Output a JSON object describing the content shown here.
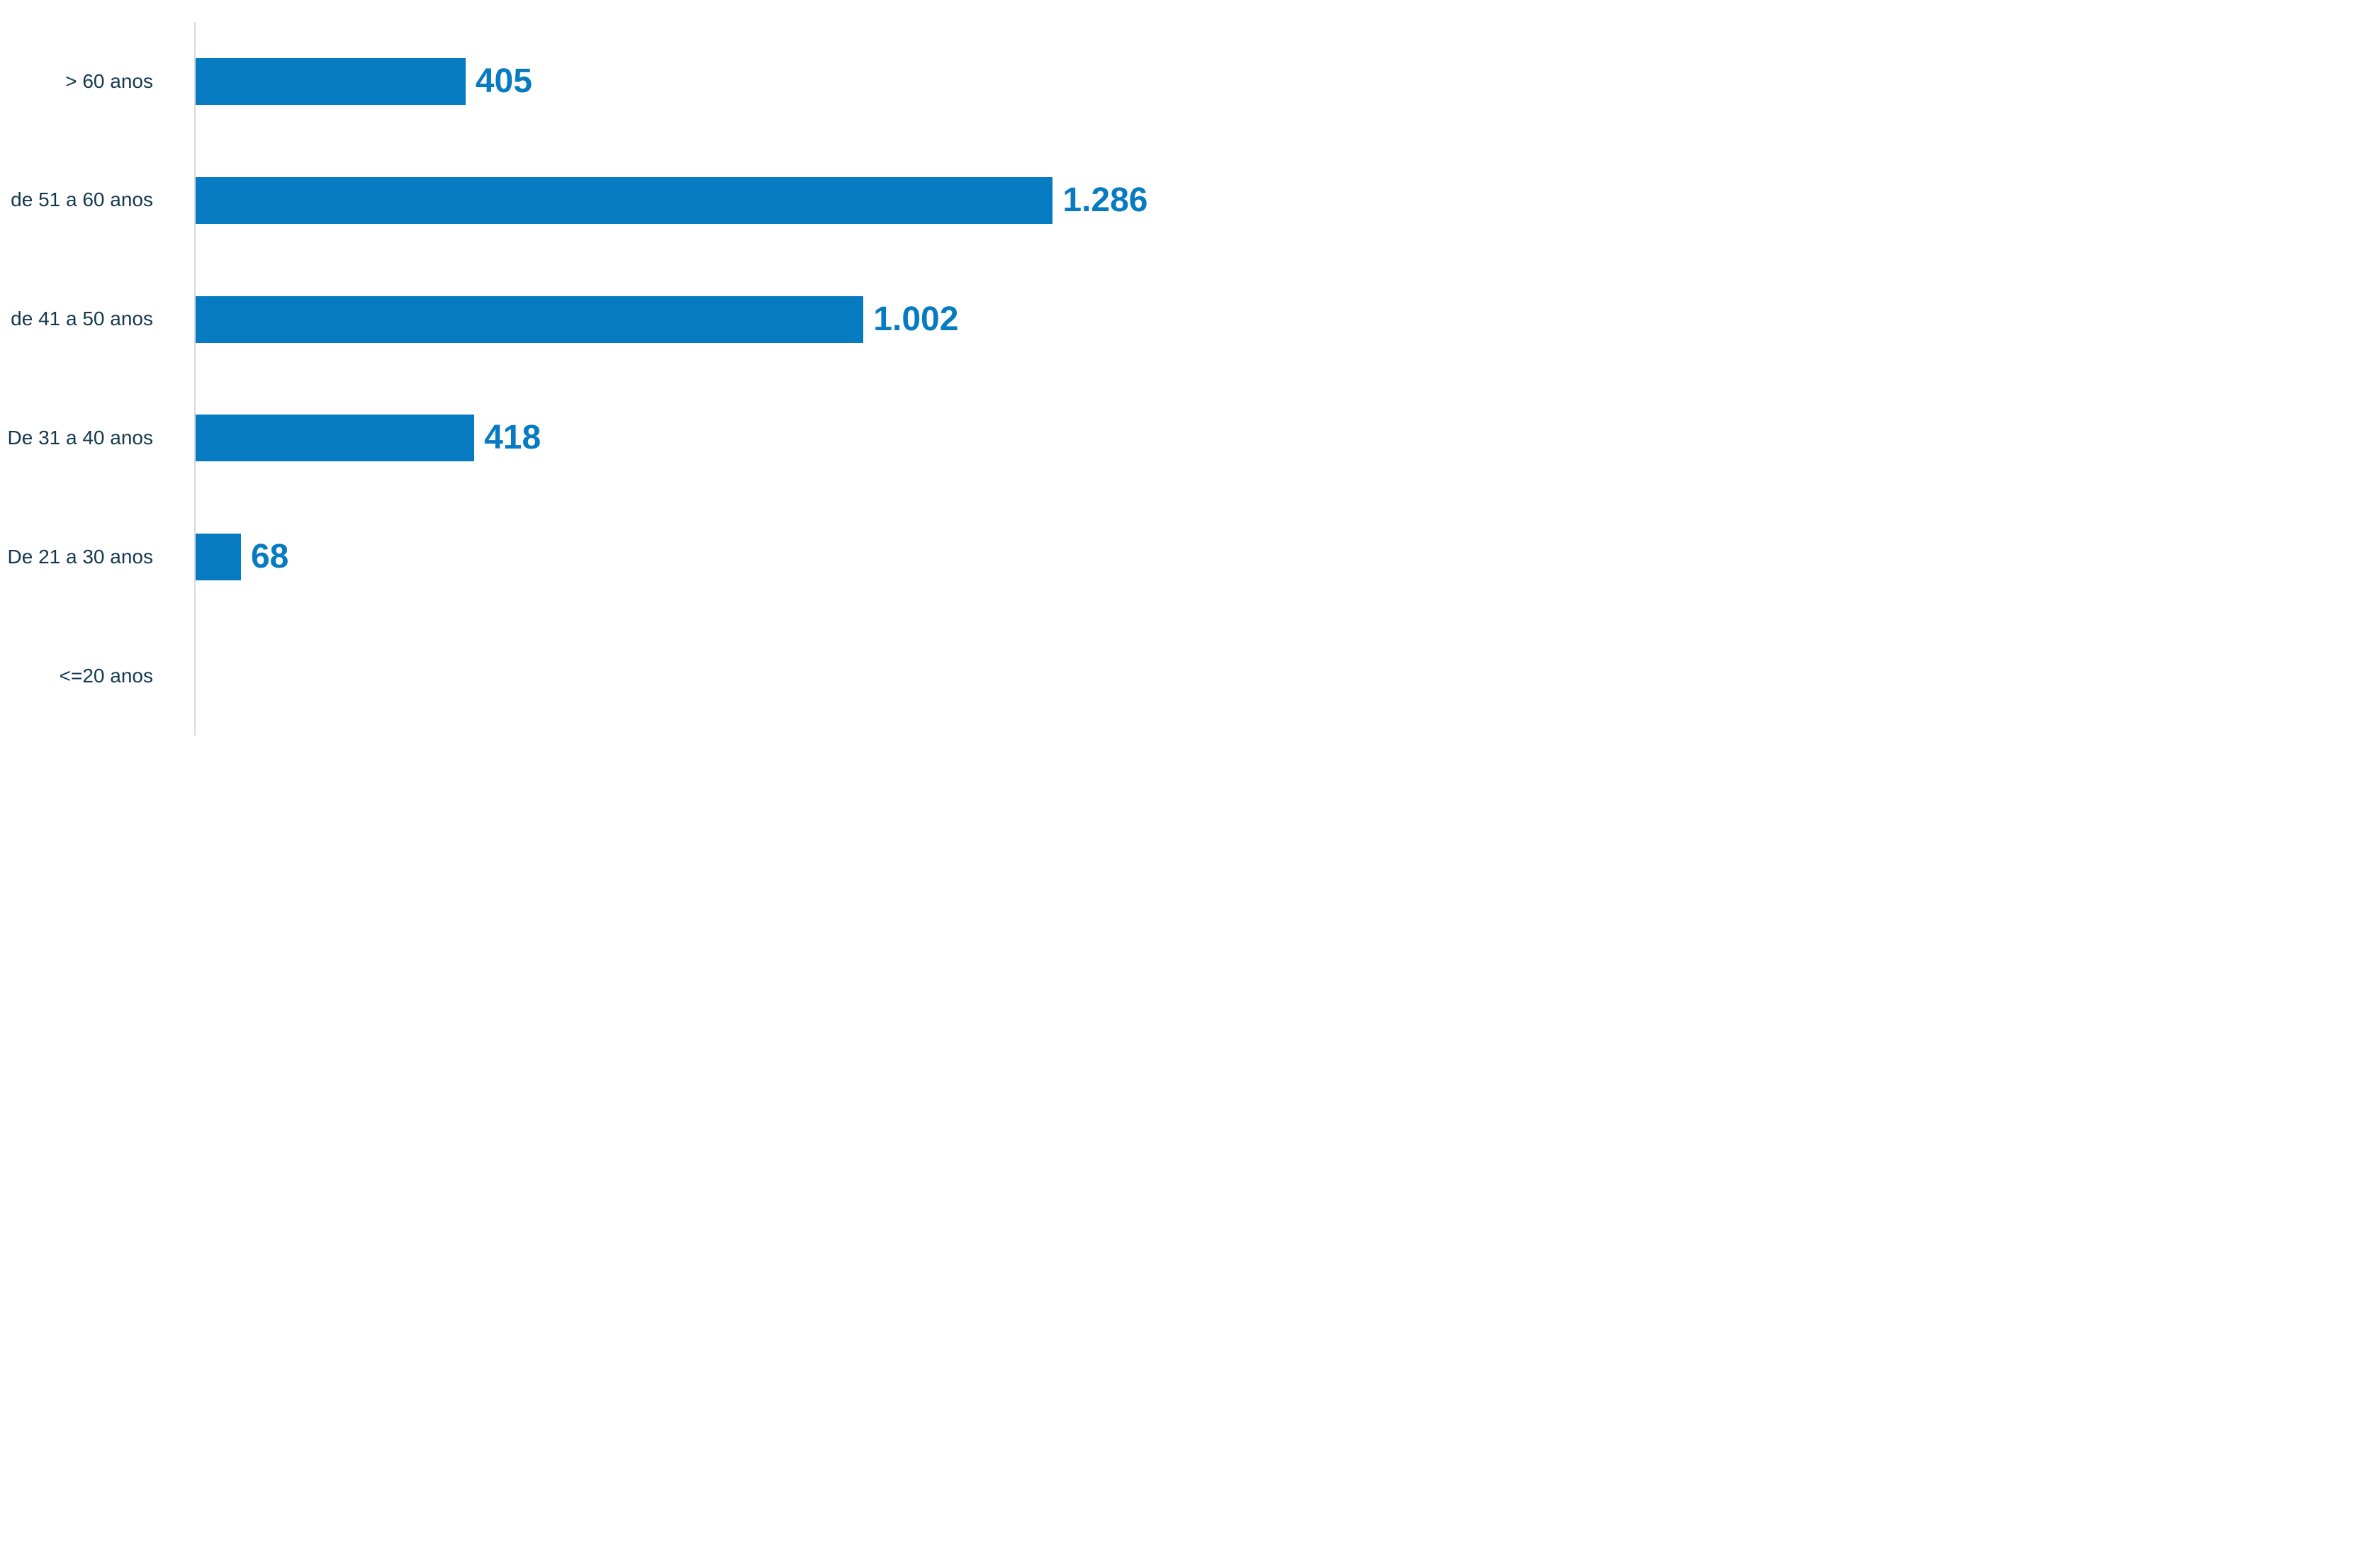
{
  "chart_data": {
    "type": "bar",
    "orientation": "horizontal",
    "title": "",
    "xlabel": "",
    "ylabel": "",
    "grid": false,
    "legend": false,
    "categories": [
      "> 60 anos",
      "de 51 a 60 anos",
      "de 41 a 50 anos",
      "De 31 a 40 anos",
      "De 21 a 30 anos",
      "<=20 anos"
    ],
    "values": [
      405,
      1286,
      1002,
      418,
      68,
      0
    ],
    "value_labels": [
      "405",
      "1.286",
      "1.002",
      "418",
      "68",
      ""
    ],
    "xlim": [
      0,
      1490
    ],
    "bar_color": "#077bc1",
    "value_label_color": "#077bc1",
    "category_label_color": "#14384f",
    "axis_line_color": "#d9d9d9",
    "background_color": "#ffffff"
  }
}
